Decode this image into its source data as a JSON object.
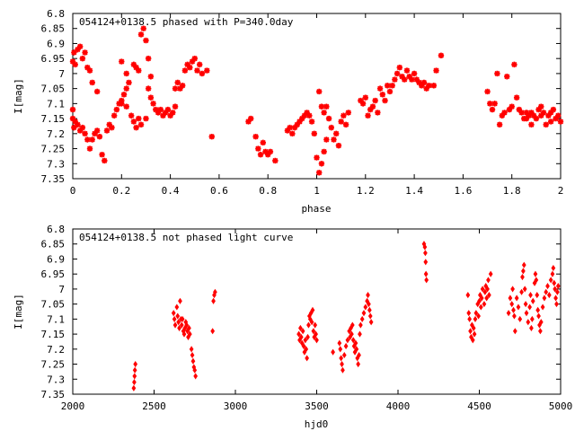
{
  "chart_data": [
    {
      "type": "scatter",
      "title": "054124+0138.5 phased with P=340.0day",
      "xlabel": "phase",
      "ylabel": "I[mag]",
      "xlim": [
        0,
        2
      ],
      "ylim": [
        7.35,
        6.8
      ],
      "y_inverted": true,
      "marker": "star",
      "color": "#ff0000",
      "xticks": [
        "0",
        "0.2",
        "0.4",
        "0.6",
        "0.8",
        "1",
        "1.2",
        "1.4",
        "1.6",
        "1.8",
        "2"
      ],
      "yticks": [
        "6.8",
        "6.85",
        "6.9",
        "6.95",
        "7",
        "7.05",
        "7.1",
        "7.15",
        "7.2",
        "7.25",
        "7.3",
        "7.35"
      ],
      "points": [
        [
          0.0,
          6.96
        ],
        [
          0.005,
          6.93
        ],
        [
          0.01,
          6.97
        ],
        [
          0.02,
          6.92
        ],
        [
          0.03,
          6.91
        ],
        [
          0.04,
          6.95
        ],
        [
          0.05,
          6.93
        ],
        [
          0.06,
          6.98
        ],
        [
          0.07,
          6.99
        ],
        [
          0.08,
          7.03
        ],
        [
          0.1,
          7.06
        ],
        [
          0.0,
          7.12
        ],
        [
          0.0,
          7.15
        ],
        [
          0.005,
          7.18
        ],
        [
          0.01,
          7.16
        ],
        [
          0.02,
          7.17
        ],
        [
          0.03,
          7.19
        ],
        [
          0.04,
          7.18
        ],
        [
          0.05,
          7.2
        ],
        [
          0.06,
          7.22
        ],
        [
          0.07,
          7.25
        ],
        [
          0.08,
          7.22
        ],
        [
          0.09,
          7.2
        ],
        [
          0.1,
          7.19
        ],
        [
          0.11,
          7.21
        ],
        [
          0.12,
          7.27
        ],
        [
          0.13,
          7.29
        ],
        [
          0.14,
          7.19
        ],
        [
          0.15,
          7.17
        ],
        [
          0.16,
          7.18
        ],
        [
          0.17,
          7.14
        ],
        [
          0.18,
          7.12
        ],
        [
          0.19,
          7.1
        ],
        [
          0.2,
          7.09
        ],
        [
          0.21,
          7.07
        ],
        [
          0.22,
          7.05
        ],
        [
          0.23,
          7.03
        ],
        [
          0.2,
          7.1
        ],
        [
          0.22,
          7.11
        ],
        [
          0.24,
          7.14
        ],
        [
          0.25,
          7.16
        ],
        [
          0.26,
          7.18
        ],
        [
          0.27,
          7.15
        ],
        [
          0.28,
          7.17
        ],
        [
          0.3,
          7.15
        ],
        [
          0.25,
          6.97
        ],
        [
          0.26,
          6.98
        ],
        [
          0.27,
          6.99
        ],
        [
          0.28,
          6.87
        ],
        [
          0.29,
          6.85
        ],
        [
          0.3,
          6.89
        ],
        [
          0.31,
          6.95
        ],
        [
          0.32,
          7.01
        ],
        [
          0.2,
          6.96
        ],
        [
          0.22,
          7.0
        ],
        [
          0.31,
          7.05
        ],
        [
          0.32,
          7.08
        ],
        [
          0.33,
          7.1
        ],
        [
          0.34,
          7.12
        ],
        [
          0.35,
          7.13
        ],
        [
          0.36,
          7.12
        ],
        [
          0.37,
          7.14
        ],
        [
          0.38,
          7.13
        ],
        [
          0.39,
          7.12
        ],
        [
          0.4,
          7.14
        ],
        [
          0.41,
          7.13
        ],
        [
          0.42,
          7.11
        ],
        [
          0.42,
          7.05
        ],
        [
          0.43,
          7.03
        ],
        [
          0.44,
          7.05
        ],
        [
          0.45,
          7.04
        ],
        [
          0.46,
          6.99
        ],
        [
          0.47,
          6.97
        ],
        [
          0.48,
          6.98
        ],
        [
          0.49,
          6.96
        ],
        [
          0.5,
          6.95
        ],
        [
          0.51,
          6.99
        ],
        [
          0.52,
          6.97
        ],
        [
          0.53,
          7.0
        ],
        [
          0.55,
          6.99
        ],
        [
          0.57,
          7.21
        ],
        [
          0.72,
          7.16
        ],
        [
          0.73,
          7.15
        ],
        [
          0.75,
          7.21
        ],
        [
          0.76,
          7.25
        ],
        [
          0.77,
          7.27
        ],
        [
          0.78,
          7.23
        ],
        [
          0.79,
          7.26
        ],
        [
          0.8,
          7.27
        ],
        [
          0.81,
          7.26
        ],
        [
          0.83,
          7.29
        ],
        [
          0.88,
          7.19
        ],
        [
          0.89,
          7.18
        ],
        [
          0.9,
          7.2
        ],
        [
          0.91,
          7.18
        ],
        [
          0.92,
          7.17
        ],
        [
          0.93,
          7.16
        ],
        [
          0.94,
          7.15
        ],
        [
          0.95,
          7.14
        ],
        [
          0.96,
          7.13
        ],
        [
          0.97,
          7.14
        ],
        [
          0.98,
          7.16
        ],
        [
          0.99,
          7.2
        ],
        [
          1.0,
          7.28
        ],
        [
          1.01,
          7.33
        ],
        [
          1.02,
          7.3
        ],
        [
          1.03,
          7.26
        ],
        [
          1.04,
          7.22
        ],
        [
          1.01,
          7.06
        ],
        [
          1.02,
          7.11
        ],
        [
          1.03,
          7.13
        ],
        [
          1.04,
          7.11
        ],
        [
          1.05,
          7.15
        ],
        [
          1.06,
          7.18
        ],
        [
          1.07,
          7.22
        ],
        [
          1.08,
          7.2
        ],
        [
          1.09,
          7.24
        ],
        [
          1.1,
          7.16
        ],
        [
          1.11,
          7.14
        ],
        [
          1.12,
          7.17
        ],
        [
          1.13,
          7.13
        ],
        [
          1.18,
          7.09
        ],
        [
          1.19,
          7.1
        ],
        [
          1.2,
          7.08
        ],
        [
          1.21,
          7.14
        ],
        [
          1.22,
          7.12
        ],
        [
          1.23,
          7.11
        ],
        [
          1.24,
          7.09
        ],
        [
          1.25,
          7.13
        ],
        [
          1.26,
          7.05
        ],
        [
          1.27,
          7.07
        ],
        [
          1.28,
          7.09
        ],
        [
          1.29,
          7.04
        ],
        [
          1.3,
          7.06
        ],
        [
          1.31,
          7.04
        ],
        [
          1.32,
          7.02
        ],
        [
          1.33,
          7.0
        ],
        [
          1.34,
          6.98
        ],
        [
          1.35,
          7.01
        ],
        [
          1.36,
          7.02
        ],
        [
          1.37,
          6.99
        ],
        [
          1.38,
          7.01
        ],
        [
          1.39,
          7.02
        ],
        [
          1.4,
          7.0
        ],
        [
          1.41,
          7.02
        ],
        [
          1.42,
          7.03
        ],
        [
          1.43,
          7.04
        ],
        [
          1.44,
          7.03
        ],
        [
          1.45,
          7.05
        ],
        [
          1.46,
          7.04
        ],
        [
          1.48,
          7.04
        ],
        [
          1.49,
          6.99
        ],
        [
          1.51,
          6.94
        ],
        [
          1.7,
          7.06
        ],
        [
          1.71,
          7.1
        ],
        [
          1.72,
          7.12
        ],
        [
          1.73,
          7.1
        ],
        [
          1.74,
          7.0
        ],
        [
          1.75,
          7.17
        ],
        [
          1.76,
          7.14
        ],
        [
          1.77,
          7.13
        ],
        [
          1.78,
          7.01
        ],
        [
          1.79,
          7.12
        ],
        [
          1.8,
          7.11
        ],
        [
          1.81,
          6.97
        ],
        [
          1.82,
          7.08
        ],
        [
          1.83,
          7.12
        ],
        [
          1.84,
          7.13
        ],
        [
          1.85,
          7.15
        ],
        [
          1.86,
          7.13
        ],
        [
          1.87,
          7.14
        ],
        [
          1.88,
          7.13
        ],
        [
          1.89,
          7.14
        ],
        [
          1.9,
          7.15
        ],
        [
          1.91,
          7.12
        ],
        [
          1.92,
          7.14
        ],
        [
          1.93,
          7.13
        ],
        [
          1.94,
          7.17
        ],
        [
          1.95,
          7.14
        ],
        [
          1.96,
          7.13
        ],
        [
          1.97,
          7.12
        ],
        [
          1.98,
          7.15
        ],
        [
          1.99,
          7.14
        ],
        [
          2.0,
          7.16
        ],
        [
          1.86,
          7.15
        ],
        [
          1.88,
          7.17
        ],
        [
          1.92,
          7.11
        ],
        [
          1.96,
          7.16
        ]
      ]
    },
    {
      "type": "scatter",
      "title": "054124+0138.5 not phased light curve",
      "xlabel": "hjd0",
      "ylabel": "I[mag]",
      "xlim": [
        2000,
        5000
      ],
      "ylim": [
        7.35,
        6.8
      ],
      "y_inverted": true,
      "marker": "diamond",
      "color": "#ff0000",
      "xticks": [
        "2000",
        "2500",
        "3000",
        "3500",
        "4000",
        "4500",
        "5000"
      ],
      "yticks": [
        "6.8",
        "6.85",
        "6.9",
        "6.95",
        "7",
        "7.05",
        "7.1",
        "7.15",
        "7.2",
        "7.25",
        "7.3",
        "7.35"
      ],
      "points": [
        [
          2375,
          7.33
        ],
        [
          2378,
          7.31
        ],
        [
          2380,
          7.29
        ],
        [
          2382,
          7.27
        ],
        [
          2385,
          7.25
        ],
        [
          2620,
          7.08
        ],
        [
          2625,
          7.1
        ],
        [
          2630,
          7.12
        ],
        [
          2640,
          7.06
        ],
        [
          2645,
          7.09
        ],
        [
          2650,
          7.11
        ],
        [
          2655,
          7.13
        ],
        [
          2660,
          7.04
        ],
        [
          2665,
          7.1
        ],
        [
          2670,
          7.12
        ],
        [
          2675,
          7.1
        ],
        [
          2680,
          7.14
        ],
        [
          2685,
          7.15
        ],
        [
          2690,
          7.13
        ],
        [
          2695,
          7.11
        ],
        [
          2700,
          7.12
        ],
        [
          2705,
          7.14
        ],
        [
          2710,
          7.16
        ],
        [
          2715,
          7.13
        ],
        [
          2720,
          7.15
        ],
        [
          2730,
          7.2
        ],
        [
          2735,
          7.22
        ],
        [
          2740,
          7.24
        ],
        [
          2745,
          7.26
        ],
        [
          2750,
          7.27
        ],
        [
          2755,
          7.29
        ],
        [
          2860,
          7.14
        ],
        [
          2865,
          7.04
        ],
        [
          2870,
          7.02
        ],
        [
          2875,
          7.01
        ],
        [
          3390,
          7.15
        ],
        [
          3395,
          7.17
        ],
        [
          3400,
          7.13
        ],
        [
          3405,
          7.16
        ],
        [
          3410,
          7.18
        ],
        [
          3415,
          7.14
        ],
        [
          3420,
          7.19
        ],
        [
          3425,
          7.21
        ],
        [
          3430,
          7.17
        ],
        [
          3435,
          7.2
        ],
        [
          3440,
          7.23
        ],
        [
          3445,
          7.16
        ],
        [
          3450,
          7.12
        ],
        [
          3455,
          7.09
        ],
        [
          3460,
          7.1
        ],
        [
          3465,
          7.08
        ],
        [
          3470,
          7.11
        ],
        [
          3475,
          7.07
        ],
        [
          3480,
          7.14
        ],
        [
          3485,
          7.16
        ],
        [
          3490,
          7.12
        ],
        [
          3495,
          7.15
        ],
        [
          3500,
          7.17
        ],
        [
          3600,
          7.21
        ],
        [
          3640,
          7.18
        ],
        [
          3645,
          7.2
        ],
        [
          3650,
          7.23
        ],
        [
          3655,
          7.25
        ],
        [
          3660,
          7.27
        ],
        [
          3670,
          7.22
        ],
        [
          3680,
          7.19
        ],
        [
          3690,
          7.17
        ],
        [
          3700,
          7.14
        ],
        [
          3705,
          7.16
        ],
        [
          3710,
          7.13
        ],
        [
          3715,
          7.15
        ],
        [
          3720,
          7.12
        ],
        [
          3725,
          7.17
        ],
        [
          3730,
          7.19
        ],
        [
          3735,
          7.21
        ],
        [
          3740,
          7.18
        ],
        [
          3745,
          7.2
        ],
        [
          3750,
          7.23
        ],
        [
          3755,
          7.25
        ],
        [
          3760,
          7.22
        ],
        [
          3765,
          7.15
        ],
        [
          3770,
          7.12
        ],
        [
          3780,
          7.1
        ],
        [
          3790,
          7.08
        ],
        [
          3800,
          7.06
        ],
        [
          3810,
          7.04
        ],
        [
          3815,
          7.02
        ],
        [
          3820,
          7.05
        ],
        [
          3825,
          7.07
        ],
        [
          3830,
          7.09
        ],
        [
          3835,
          7.11
        ],
        [
          4160,
          6.85
        ],
        [
          4165,
          6.86
        ],
        [
          4168,
          6.88
        ],
        [
          4170,
          6.91
        ],
        [
          4172,
          6.95
        ],
        [
          4175,
          6.97
        ],
        [
          4430,
          7.02
        ],
        [
          4435,
          7.08
        ],
        [
          4440,
          7.1
        ],
        [
          4445,
          7.14
        ],
        [
          4450,
          7.16
        ],
        [
          4455,
          7.12
        ],
        [
          4460,
          7.17
        ],
        [
          4465,
          7.13
        ],
        [
          4470,
          7.15
        ],
        [
          4475,
          7.1
        ],
        [
          4480,
          7.08
        ],
        [
          4490,
          7.05
        ],
        [
          4495,
          7.09
        ],
        [
          4500,
          7.04
        ],
        [
          4505,
          7.02
        ],
        [
          4510,
          7.06
        ],
        [
          4515,
          7.03
        ],
        [
          4520,
          7.0
        ],
        [
          4530,
          7.05
        ],
        [
          4535,
          7.01
        ],
        [
          4540,
          6.99
        ],
        [
          4545,
          7.03
        ],
        [
          4550,
          7.0
        ],
        [
          4555,
          6.97
        ],
        [
          4560,
          7.02
        ],
        [
          4570,
          6.95
        ],
        [
          4680,
          7.08
        ],
        [
          4690,
          7.03
        ],
        [
          4700,
          7.05
        ],
        [
          4705,
          7.0
        ],
        [
          4710,
          7.07
        ],
        [
          4715,
          7.09
        ],
        [
          4720,
          7.14
        ],
        [
          4730,
          7.03
        ],
        [
          4740,
          7.06
        ],
        [
          4750,
          7.1
        ],
        [
          4760,
          7.01
        ],
        [
          4765,
          6.96
        ],
        [
          4770,
          6.94
        ],
        [
          4775,
          6.92
        ],
        [
          4780,
          7.0
        ],
        [
          4785,
          7.05
        ],
        [
          4790,
          7.08
        ],
        [
          4800,
          7.11
        ],
        [
          4810,
          7.06
        ],
        [
          4815,
          7.02
        ],
        [
          4820,
          7.13
        ],
        [
          4825,
          7.1
        ],
        [
          4830,
          7.04
        ],
        [
          4840,
          6.98
        ],
        [
          4845,
          6.95
        ],
        [
          4850,
          6.97
        ],
        [
          4855,
          7.02
        ],
        [
          4860,
          7.07
        ],
        [
          4865,
          7.09
        ],
        [
          4870,
          7.12
        ],
        [
          4875,
          7.14
        ],
        [
          4880,
          7.11
        ],
        [
          4890,
          7.06
        ],
        [
          4900,
          7.03
        ],
        [
          4910,
          7.01
        ],
        [
          4920,
          6.99
        ],
        [
          4930,
          7.02
        ],
        [
          4940,
          6.97
        ],
        [
          4950,
          6.95
        ],
        [
          4955,
          6.93
        ],
        [
          4960,
          6.98
        ],
        [
          4965,
          7.0
        ],
        [
          4970,
          7.03
        ],
        [
          4975,
          7.05
        ],
        [
          4980,
          7.01
        ],
        [
          4985,
          6.99
        ]
      ]
    }
  ]
}
